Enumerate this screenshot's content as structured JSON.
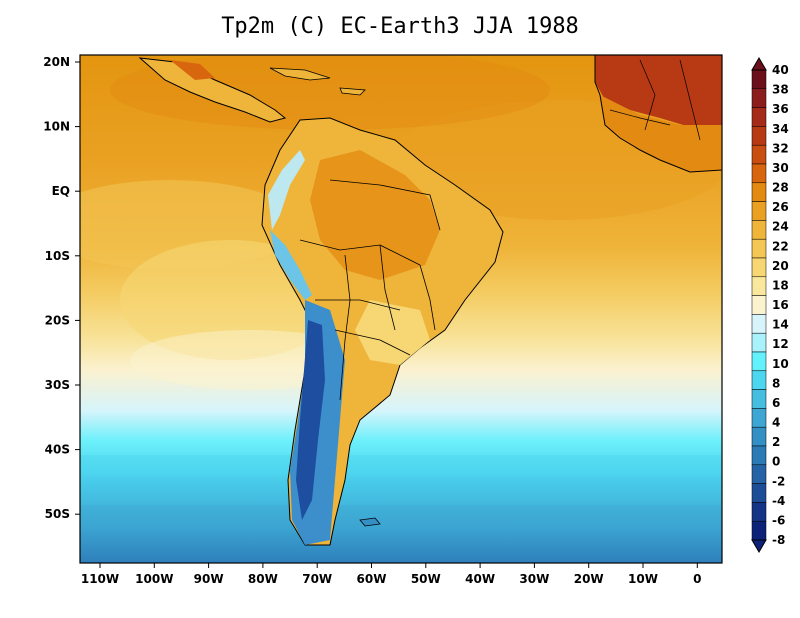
{
  "title": "Tp2m (C)   EC-Earth3 JJA 1988",
  "lon_labels": [
    "110W",
    "100W",
    "90W",
    "80W",
    "70W",
    "60W",
    "50W",
    "40W",
    "30W",
    "20W",
    "10W",
    "0"
  ],
  "lat_labels": [
    "20N",
    "10N",
    "EQ",
    "10S",
    "20S",
    "30S",
    "40S",
    "50S"
  ],
  "colorbar": {
    "labels": [
      "40",
      "38",
      "36",
      "34",
      "32",
      "30",
      "28",
      "26",
      "24",
      "22",
      "20",
      "18",
      "16",
      "14",
      "12",
      "10",
      "8",
      "6",
      "4",
      "2",
      "0",
      "-2",
      "-4",
      "-6",
      "-8"
    ],
    "colors": [
      "#6b0f1a",
      "#8c1d1d",
      "#a52a1a",
      "#b83a14",
      "#c94e12",
      "#d8660f",
      "#e38a12",
      "#eaa022",
      "#efb43a",
      "#f3c655",
      "#f6d774",
      "#f8e79c",
      "#fbf3d0",
      "#d8f4fb",
      "#a9f1fb",
      "#63f1fb",
      "#4cd6ef",
      "#45bee0",
      "#3da6d2",
      "#348fc4",
      "#2c7ab6",
      "#2563a6",
      "#1d4d97",
      "#143586",
      "#0c2178"
    ]
  }
}
